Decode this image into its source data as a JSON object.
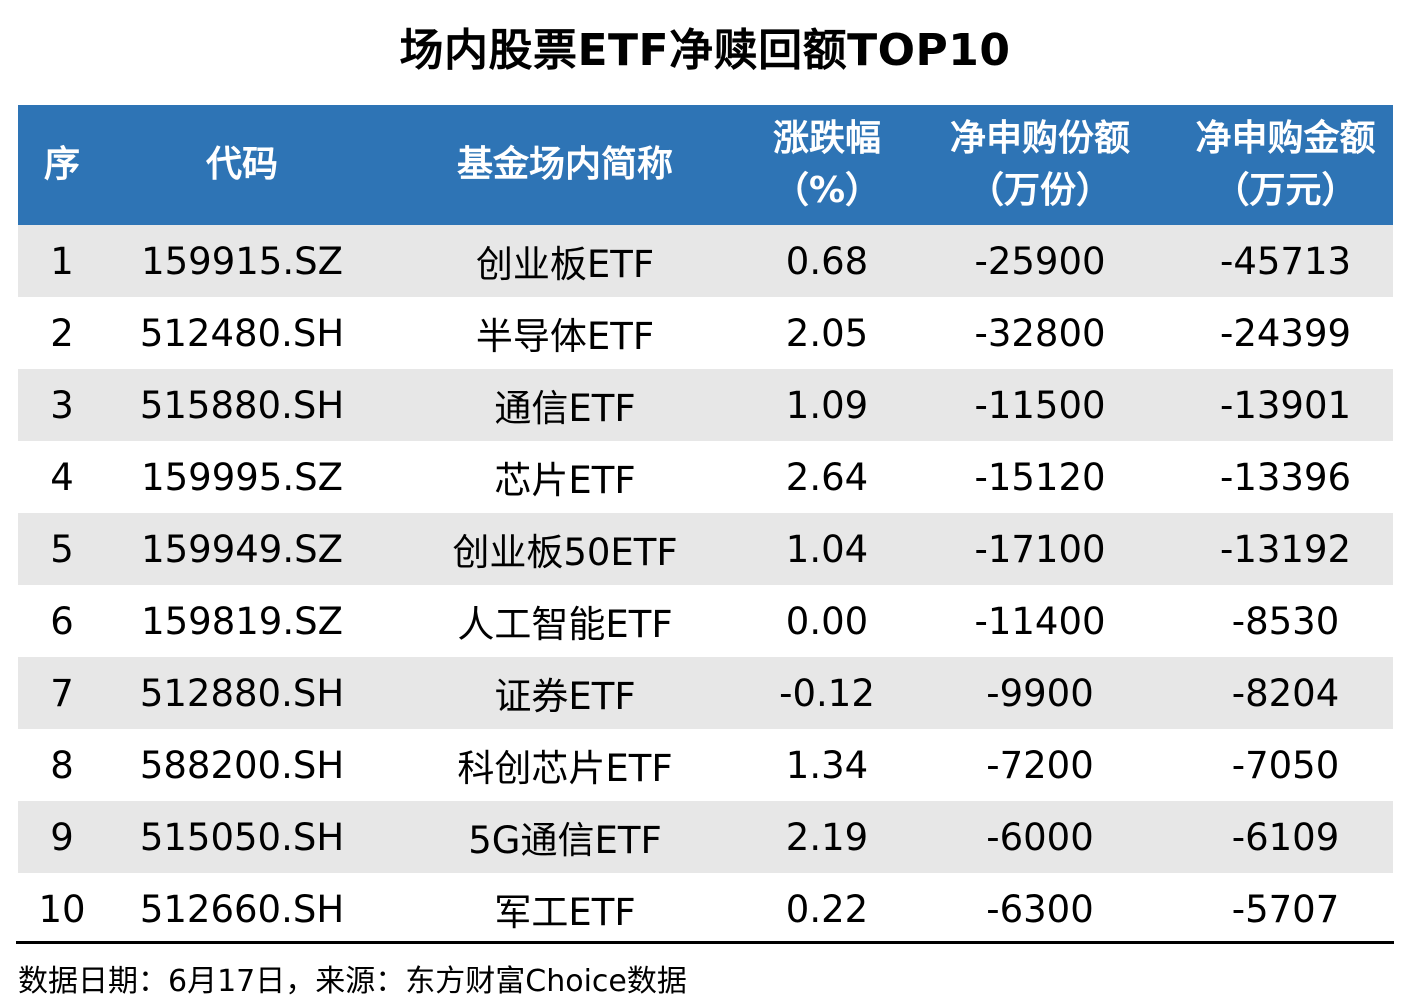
{
  "chart_data": {
    "type": "table",
    "title": "场内股票ETF净赎回额TOP10",
    "columns": [
      {
        "line1": "序",
        "line2": ""
      },
      {
        "line1": "代码",
        "line2": ""
      },
      {
        "line1": "基金场内简称",
        "line2": ""
      },
      {
        "line1": "涨跌幅",
        "line2": "（%）"
      },
      {
        "line1": "净申购份额",
        "line2": "（万份）"
      },
      {
        "line1": "净申购金额",
        "line2": "（万元）"
      }
    ],
    "column_labels_flat": [
      "序",
      "代码",
      "基金场内简称",
      "涨跌幅（%）",
      "净申购份额（万份）",
      "净申购金额（万元）"
    ],
    "rows": [
      [
        "1",
        "159915.SZ",
        "创业板ETF",
        "0.68",
        "-25900",
        "-45713"
      ],
      [
        "2",
        "512480.SH",
        "半导体ETF",
        "2.05",
        "-32800",
        "-24399"
      ],
      [
        "3",
        "515880.SH",
        "通信ETF",
        "1.09",
        "-11500",
        "-13901"
      ],
      [
        "4",
        "159995.SZ",
        "芯片ETF",
        "2.64",
        "-15120",
        "-13396"
      ],
      [
        "5",
        "159949.SZ",
        "创业板50ETF",
        "1.04",
        "-17100",
        "-13192"
      ],
      [
        "6",
        "159819.SZ",
        "人工智能ETF",
        "0.00",
        "-11400",
        "-8530"
      ],
      [
        "7",
        "512880.SH",
        "证券ETF",
        "-0.12",
        "-9900",
        "-8204"
      ],
      [
        "8",
        "588200.SH",
        "科创芯片ETF",
        "1.34",
        "-7200",
        "-7050"
      ],
      [
        "9",
        "515050.SH",
        "5G通信ETF",
        "2.19",
        "-6000",
        "-6109"
      ],
      [
        "10",
        "512660.SH",
        "军工ETF",
        "0.22",
        "-6300",
        "-5707"
      ]
    ],
    "legend_position": "none",
    "grid": false
  },
  "footer": {
    "text": "数据日期：6月17日，来源：东方财富Choice数据"
  },
  "colors": {
    "header_bg": "#2E74B5",
    "header_text": "#FFFFFF",
    "stripe_bg": "#E7E7E7",
    "row_bg": "#FFFFFF",
    "text": "#000000",
    "divider": "#000000"
  }
}
